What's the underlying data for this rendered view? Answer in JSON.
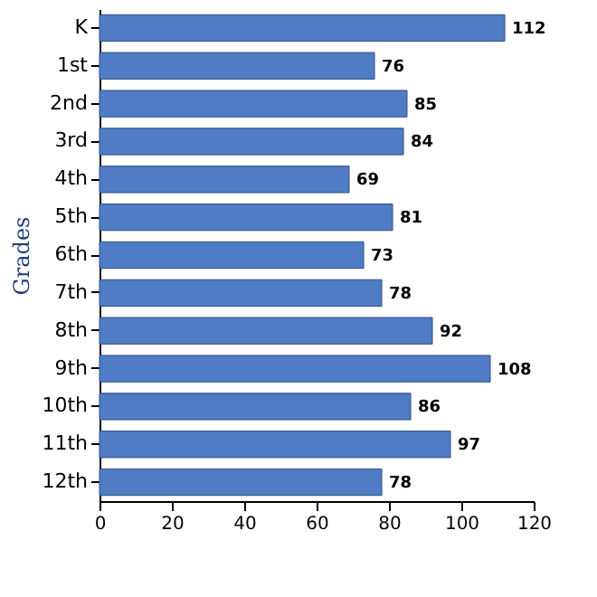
{
  "chart_data": {
    "type": "bar",
    "orientation": "horizontal",
    "ylabel": "Grades",
    "categories": [
      "K",
      "1st",
      "2nd",
      "3rd",
      "4th",
      "5th",
      "6th",
      "7th",
      "8th",
      "9th",
      "10th",
      "11th",
      "12th"
    ],
    "values": [
      112,
      76,
      85,
      84,
      69,
      81,
      73,
      78,
      92,
      108,
      86,
      97,
      78
    ],
    "color": "#4f7cc4",
    "xlim": [
      0,
      120
    ],
    "xticks": [
      0,
      20,
      40,
      60,
      80,
      100,
      120
    ],
    "data_labels": true,
    "grid": false
  }
}
